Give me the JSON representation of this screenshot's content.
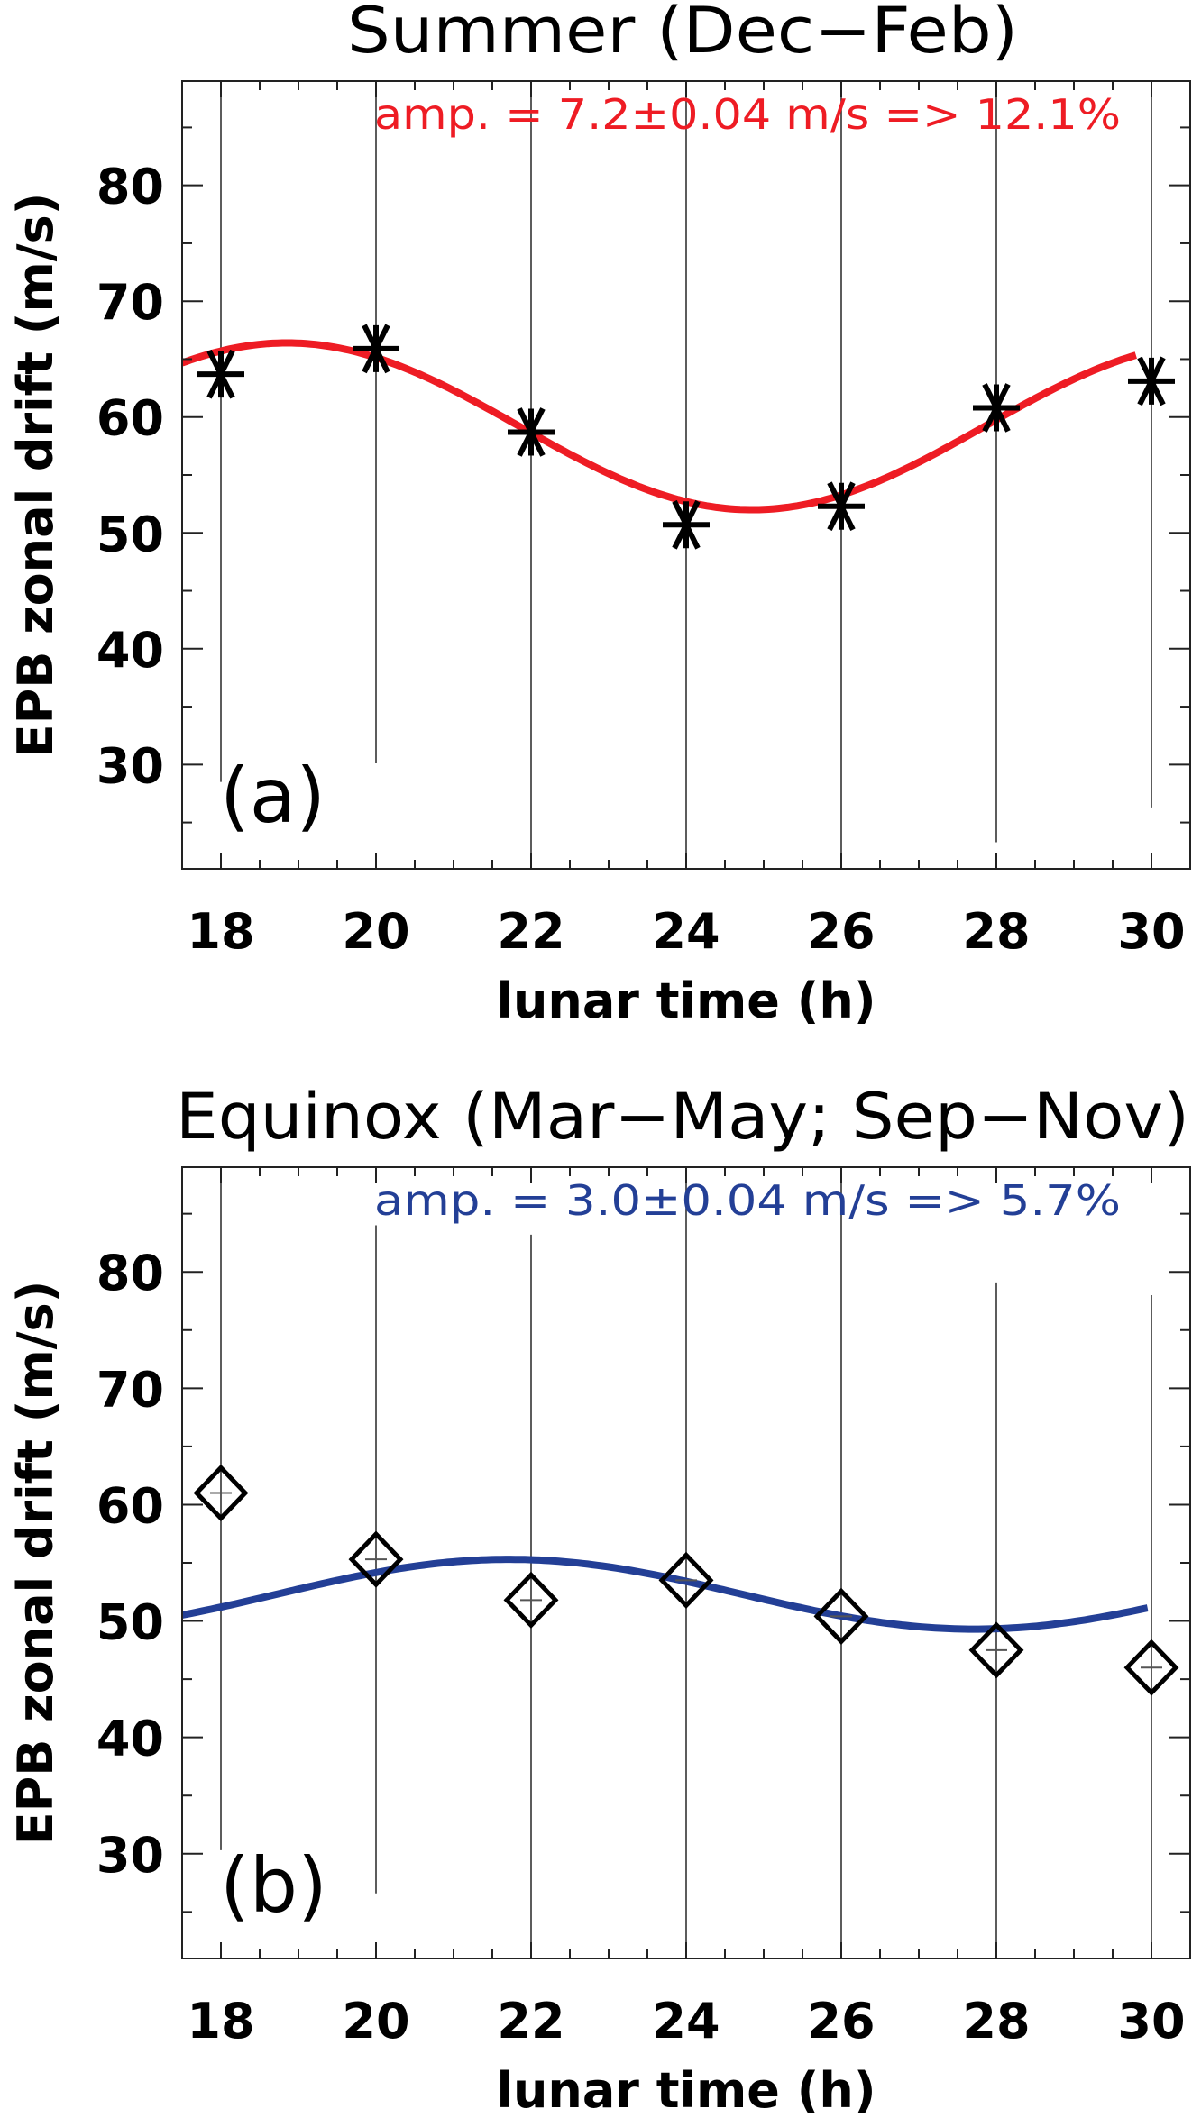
{
  "chart_data": [
    {
      "type": "scatter",
      "title": "Summer (Dec−Feb)",
      "panel_label": "(a)",
      "xlabel": "lunar time (h)",
      "ylabel": "EPB zonal drift (m/s)",
      "xlim": [
        17.5,
        30.5
      ],
      "ylim": [
        21,
        89
      ],
      "xticks": [
        18,
        20,
        22,
        24,
        26,
        28,
        30
      ],
      "yticks": [
        30,
        40,
        50,
        60,
        70,
        80
      ],
      "grid": false,
      "marker": "asterisk",
      "marker_color": "#000000",
      "points": [
        {
          "x": 18,
          "y": 63.7,
          "err": 35.2
        },
        {
          "x": 20,
          "y": 65.9,
          "err": 35.8
        },
        {
          "x": 22,
          "y": 58.7,
          "err": 40
        },
        {
          "x": 24,
          "y": 50.7,
          "err": 40
        },
        {
          "x": 26,
          "y": 52.3,
          "err": 40
        },
        {
          "x": 28,
          "y": 60.8,
          "err": 37.5
        },
        {
          "x": 30,
          "y": 63.1,
          "err": 36.8
        }
      ],
      "fit": {
        "color": "#ee1c24",
        "annotation": "amp. = 7.2±0.04 m/s => 12.1%",
        "mean": 59.2,
        "amplitude": 7.2,
        "period_h": 12,
        "peak_h": 18.85,
        "x_range": [
          17.5,
          29.8
        ]
      }
    },
    {
      "type": "scatter",
      "title": "Equinox (Mar−May; Sep−Nov)",
      "panel_label": "(b)",
      "xlabel": "lunar time (h)",
      "ylabel": "EPB zonal drift (m/s)",
      "xlim": [
        17.5,
        30.5
      ],
      "ylim": [
        21,
        89
      ],
      "xticks": [
        18,
        20,
        22,
        24,
        26,
        28,
        30
      ],
      "yticks": [
        30,
        40,
        50,
        60,
        70,
        80
      ],
      "grid": false,
      "marker": "diamond",
      "marker_color": "#000000",
      "points": [
        {
          "x": 18,
          "y": 61.0,
          "err": 30.7
        },
        {
          "x": 20,
          "y": 55.3,
          "err": 28.7
        },
        {
          "x": 22,
          "y": 51.8,
          "err": 31.4
        },
        {
          "x": 24,
          "y": 53.5,
          "err": 36
        },
        {
          "x": 26,
          "y": 50.4,
          "err": 39
        },
        {
          "x": 28,
          "y": 47.5,
          "err": 31.6
        },
        {
          "x": 30,
          "y": 46.0,
          "err": 32
        }
      ],
      "fit": {
        "color": "#233f96",
        "annotation": "amp. = 3.0±0.04 m/s =>  5.7%",
        "mean": 52.3,
        "amplitude": 3.0,
        "period_h": 12,
        "peak_h": 21.72,
        "x_range": [
          17.5,
          29.95
        ]
      }
    }
  ]
}
